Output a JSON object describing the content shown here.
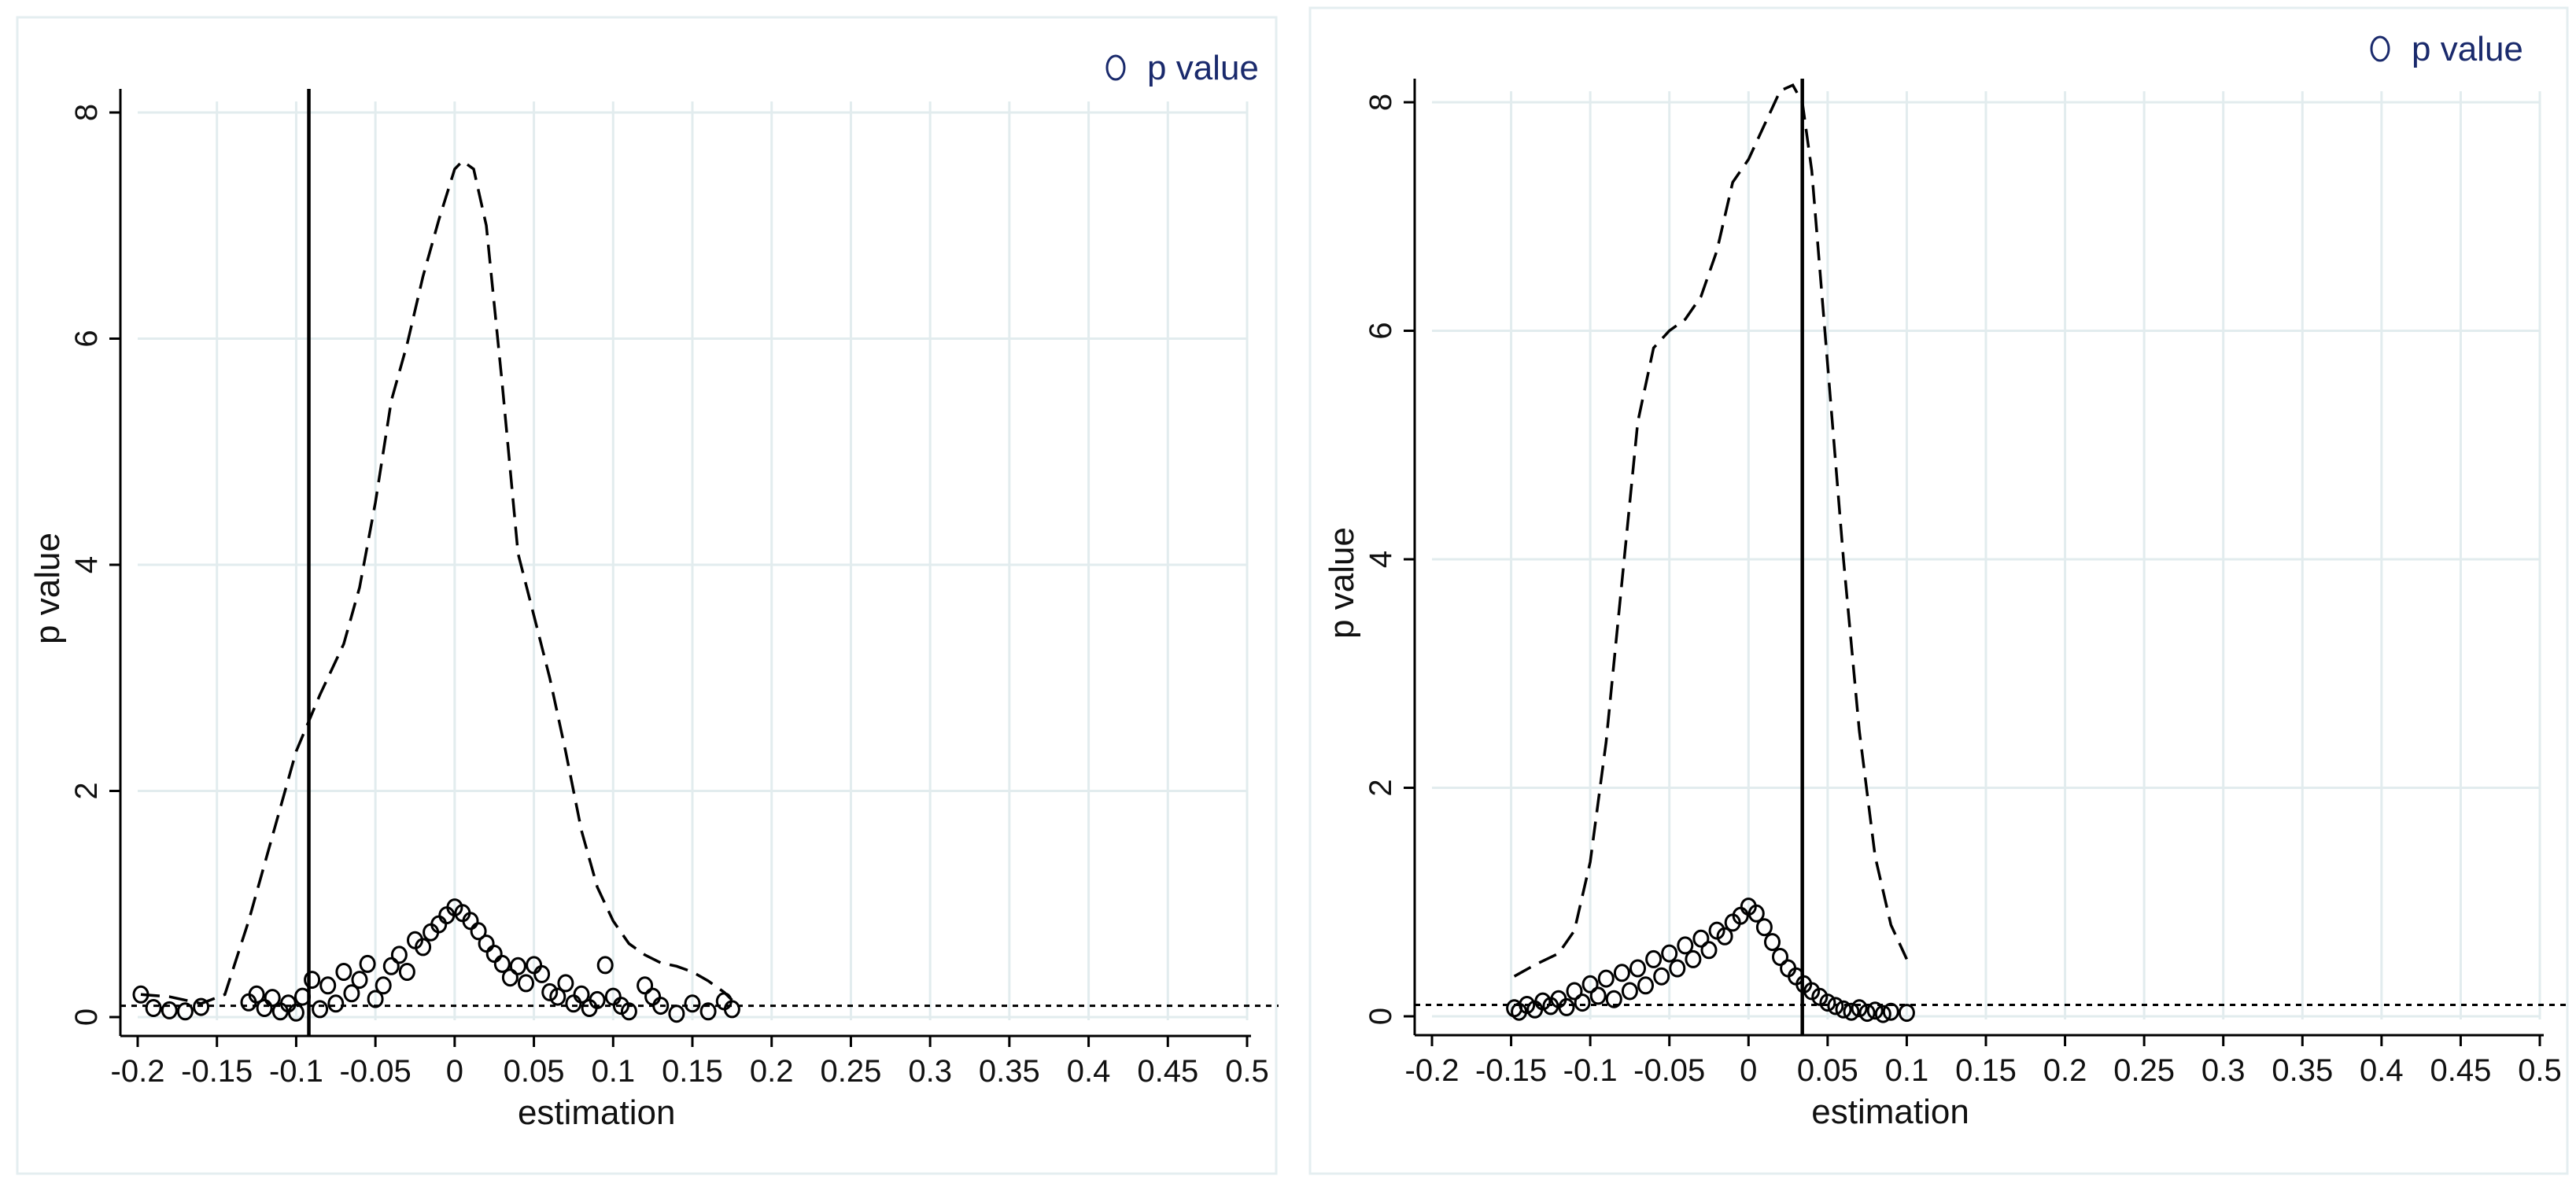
{
  "chart_data": [
    {
      "type": "scatter",
      "legend": {
        "label": "p value",
        "marker": "hollow-circle",
        "placement": "top-right"
      },
      "xlabel": "estimation",
      "ylabel": "p value",
      "xlim": [
        -0.2,
        0.5
      ],
      "ylim": [
        0,
        8
      ],
      "x_ticks": [
        -0.2,
        -0.15,
        -0.1,
        -0.05,
        0,
        0.05,
        0.1,
        0.15,
        0.2,
        0.25,
        0.3,
        0.35,
        0.4,
        0.45,
        0.5
      ],
      "x_tick_labels": [
        "-0.2",
        "-0.15",
        "-0.1",
        "-0.05",
        "0",
        "0.05",
        "0.1",
        "0.15",
        "0.2",
        "0.25",
        "0.3",
        "0.35",
        "0.4",
        "0.45",
        "0.5"
      ],
      "y_ticks": [
        0,
        2,
        4,
        6,
        8
      ],
      "y_tick_labels": [
        "0",
        "2",
        "4",
        "6",
        "8"
      ],
      "grid": true,
      "reference_hline_y": 0.1,
      "vertical_line_x": -0.092,
      "density_curve": {
        "x": [
          -0.198,
          -0.18,
          -0.16,
          -0.145,
          -0.13,
          -0.115,
          -0.1,
          -0.085,
          -0.07,
          -0.06,
          -0.05,
          -0.04,
          -0.03,
          -0.02,
          -0.01,
          0,
          0.005,
          0.012,
          0.02,
          0.03,
          0.04,
          0.05,
          0.06,
          0.07,
          0.08,
          0.09,
          0.1,
          0.11,
          0.12,
          0.13,
          0.14,
          0.15,
          0.16,
          0.17,
          0.175
        ],
        "y": [
          0.2,
          0.18,
          0.12,
          0.2,
          0.85,
          1.6,
          2.35,
          2.85,
          3.3,
          3.8,
          4.55,
          5.45,
          5.95,
          6.55,
          7.05,
          7.5,
          7.57,
          7.5,
          7.0,
          5.6,
          4.1,
          3.55,
          3.0,
          2.35,
          1.65,
          1.15,
          0.85,
          0.65,
          0.55,
          0.48,
          0.45,
          0.4,
          0.32,
          0.22,
          0.15
        ]
      },
      "points": [
        [
          -0.198,
          0.2
        ],
        [
          -0.19,
          0.08
        ],
        [
          -0.18,
          0.06
        ],
        [
          -0.17,
          0.05
        ],
        [
          -0.16,
          0.09
        ],
        [
          -0.13,
          0.13
        ],
        [
          -0.125,
          0.2
        ],
        [
          -0.12,
          0.08
        ],
        [
          -0.115,
          0.17
        ],
        [
          -0.11,
          0.05
        ],
        [
          -0.105,
          0.12
        ],
        [
          -0.1,
          0.04
        ],
        [
          -0.096,
          0.18
        ],
        [
          -0.09,
          0.33
        ],
        [
          -0.085,
          0.07
        ],
        [
          -0.08,
          0.28
        ],
        [
          -0.075,
          0.12
        ],
        [
          -0.07,
          0.4
        ],
        [
          -0.065,
          0.21
        ],
        [
          -0.06,
          0.33
        ],
        [
          -0.055,
          0.47
        ],
        [
          -0.05,
          0.16
        ],
        [
          -0.045,
          0.28
        ],
        [
          -0.04,
          0.45
        ],
        [
          -0.035,
          0.55
        ],
        [
          -0.03,
          0.4
        ],
        [
          -0.025,
          0.68
        ],
        [
          -0.02,
          0.62
        ],
        [
          -0.015,
          0.75
        ],
        [
          -0.01,
          0.82
        ],
        [
          -0.005,
          0.9
        ],
        [
          0,
          0.97
        ],
        [
          0.005,
          0.92
        ],
        [
          0.01,
          0.85
        ],
        [
          0.015,
          0.76
        ],
        [
          0.02,
          0.65
        ],
        [
          0.025,
          0.56
        ],
        [
          0.03,
          0.47
        ],
        [
          0.035,
          0.35
        ],
        [
          0.04,
          0.45
        ],
        [
          0.045,
          0.3
        ],
        [
          0.05,
          0.46
        ],
        [
          0.055,
          0.38
        ],
        [
          0.06,
          0.22
        ],
        [
          0.065,
          0.18
        ],
        [
          0.07,
          0.3
        ],
        [
          0.075,
          0.12
        ],
        [
          0.08,
          0.2
        ],
        [
          0.085,
          0.08
        ],
        [
          0.09,
          0.15
        ],
        [
          0.095,
          0.46
        ],
        [
          0.1,
          0.18
        ],
        [
          0.105,
          0.1
        ],
        [
          0.11,
          0.05
        ],
        [
          0.12,
          0.28
        ],
        [
          0.125,
          0.18
        ],
        [
          0.13,
          0.1
        ],
        [
          0.14,
          0.03
        ],
        [
          0.15,
          0.12
        ],
        [
          0.16,
          0.05
        ],
        [
          0.17,
          0.14
        ],
        [
          0.175,
          0.07
        ]
      ]
    },
    {
      "type": "scatter",
      "legend": {
        "label": "p value",
        "marker": "hollow-circle",
        "placement": "top-right"
      },
      "xlabel": "estimation",
      "ylabel": "p value",
      "xlim": [
        -0.2,
        0.5
      ],
      "ylim": [
        0,
        8
      ],
      "x_ticks": [
        -0.2,
        -0.15,
        -0.1,
        -0.05,
        0,
        0.05,
        0.1,
        0.15,
        0.2,
        0.25,
        0.3,
        0.35,
        0.4,
        0.45,
        0.5
      ],
      "x_tick_labels": [
        "-0.2",
        "-0.15",
        "-0.1",
        "-0.05",
        "0",
        "0.05",
        "0.1",
        "0.15",
        "0.2",
        "0.25",
        "0.3",
        "0.35",
        "0.4",
        "0.45",
        "0.5"
      ],
      "y_ticks": [
        0,
        2,
        4,
        6,
        8
      ],
      "y_tick_labels": [
        "0",
        "2",
        "4",
        "6",
        "8"
      ],
      "grid": true,
      "reference_hline_y": 0.1,
      "vertical_line_x": 0.034,
      "density_curve": {
        "x": [
          -0.148,
          -0.135,
          -0.12,
          -0.11,
          -0.1,
          -0.09,
          -0.08,
          -0.07,
          -0.06,
          -0.05,
          -0.04,
          -0.03,
          -0.02,
          -0.01,
          0,
          0.01,
          0.02,
          0.028,
          0.034,
          0.04,
          0.05,
          0.06,
          0.07,
          0.08,
          0.09,
          0.1
        ],
        "y": [
          0.35,
          0.45,
          0.55,
          0.75,
          1.35,
          2.4,
          3.8,
          5.2,
          5.85,
          6.0,
          6.1,
          6.3,
          6.7,
          7.3,
          7.5,
          7.8,
          8.1,
          8.15,
          8.0,
          7.4,
          5.7,
          4.0,
          2.5,
          1.4,
          0.8,
          0.5
        ]
      },
      "points": [
        [
          -0.148,
          0.07
        ],
        [
          -0.145,
          0.04
        ],
        [
          -0.14,
          0.1
        ],
        [
          -0.135,
          0.06
        ],
        [
          -0.13,
          0.13
        ],
        [
          -0.125,
          0.09
        ],
        [
          -0.12,
          0.15
        ],
        [
          -0.115,
          0.08
        ],
        [
          -0.11,
          0.22
        ],
        [
          -0.105,
          0.12
        ],
        [
          -0.1,
          0.28
        ],
        [
          -0.095,
          0.18
        ],
        [
          -0.09,
          0.33
        ],
        [
          -0.085,
          0.15
        ],
        [
          -0.08,
          0.38
        ],
        [
          -0.075,
          0.22
        ],
        [
          -0.07,
          0.42
        ],
        [
          -0.065,
          0.27
        ],
        [
          -0.06,
          0.5
        ],
        [
          -0.055,
          0.35
        ],
        [
          -0.05,
          0.55
        ],
        [
          -0.045,
          0.42
        ],
        [
          -0.04,
          0.62
        ],
        [
          -0.035,
          0.5
        ],
        [
          -0.03,
          0.68
        ],
        [
          -0.025,
          0.58
        ],
        [
          -0.02,
          0.75
        ],
        [
          -0.015,
          0.7
        ],
        [
          -0.01,
          0.82
        ],
        [
          -0.005,
          0.88
        ],
        [
          0,
          0.96
        ],
        [
          0.005,
          0.9
        ],
        [
          0.01,
          0.78
        ],
        [
          0.015,
          0.65
        ],
        [
          0.02,
          0.52
        ],
        [
          0.025,
          0.42
        ],
        [
          0.03,
          0.35
        ],
        [
          0.035,
          0.28
        ],
        [
          0.04,
          0.22
        ],
        [
          0.045,
          0.17
        ],
        [
          0.05,
          0.12
        ],
        [
          0.055,
          0.09
        ],
        [
          0.06,
          0.06
        ],
        [
          0.065,
          0.04
        ],
        [
          0.07,
          0.07
        ],
        [
          0.075,
          0.03
        ],
        [
          0.08,
          0.05
        ],
        [
          0.085,
          0.02
        ],
        [
          0.09,
          0.04
        ],
        [
          0.1,
          0.03
        ]
      ]
    }
  ]
}
